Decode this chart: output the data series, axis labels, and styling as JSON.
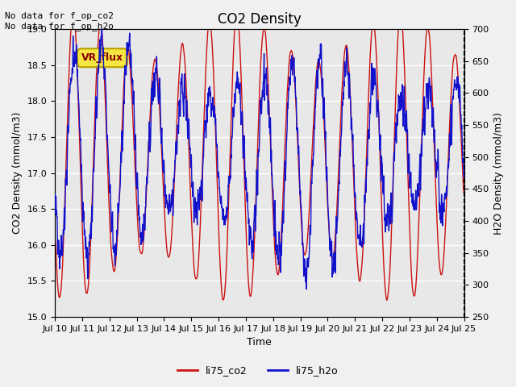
{
  "title": "CO2 Density",
  "xlabel": "Time",
  "ylabel_left": "CO2 Density (mmol/m3)",
  "ylabel_right": "H2O Density (mmol/m3)",
  "annotation_text": "No data for f_op_co2\nNo data for f_op_h2o",
  "vr_flux_label": "VR_flux",
  "legend_labels": [
    "li75_co2",
    "li75_h2o"
  ],
  "co2_color": "#cc1111",
  "h2o_color": "#1111cc",
  "ylim_left": [
    15.0,
    19.0
  ],
  "ylim_right": [
    250,
    700
  ],
  "bg_color": "#e8e8e8",
  "fig_bg_color": "#f0f0f0",
  "yticks_left": [
    15.0,
    15.5,
    16.0,
    16.5,
    17.0,
    17.5,
    18.0,
    18.5,
    19.0
  ],
  "yticks_right": [
    250,
    300,
    350,
    400,
    450,
    500,
    550,
    600,
    650,
    700
  ],
  "xtick_labels": [
    "Jul 10",
    "Jul 11",
    "Jul 12",
    "Jul 13",
    "Jul 14",
    "Jul 15",
    "Jul 16",
    "Jul 17",
    "Jul 18",
    "Jul 19",
    "Jul 20",
    "Jul 21",
    "Jul 22",
    "Jul 23",
    "Jul 24",
    "Jul 25"
  ],
  "n_days": 15,
  "seed": 99
}
